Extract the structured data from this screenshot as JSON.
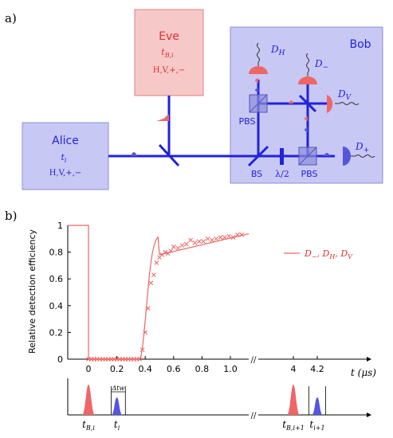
{
  "panel_a": {
    "label": "a)",
    "alice": {
      "title": "Alice",
      "time": "t",
      "time_sub": "i",
      "bases": "H,V,+,−"
    },
    "eve": {
      "title": "Eve",
      "time": "t",
      "time_sub": "B,i",
      "bases": "H,V,+,−"
    },
    "bob": {
      "title": "Bob"
    },
    "components": {
      "bs": "BS",
      "half_wave": "λ/2",
      "pbs1": "PBS",
      "pbs2": "PBS"
    },
    "detectors": {
      "dh": "D",
      "dh_sub": "H",
      "dminus": "D",
      "dminus_sub": "−",
      "dv": "D",
      "dv_sub": "V",
      "dplus": "D",
      "dplus_sub": "+"
    },
    "colors": {
      "blue_fill": "#c8c8f5",
      "blue_edge": "#8c8cdc",
      "beam": "#2222dd",
      "red_fill": "#f7c8c8",
      "red_edge": "#e08080",
      "red": "#e05050",
      "detector_blue": "#5555dd",
      "detector_red": "#ee6666"
    }
  },
  "panel_b": {
    "label": "b)",
    "chart_data": {
      "type": "line",
      "ylabel": "Relative detection efficiency",
      "xlabel": "t (μs)",
      "legend": "D−, DH, DV",
      "legend_placement": "right",
      "ylim": [
        0,
        1
      ],
      "yticks": [
        "0",
        "0.2",
        "0.4",
        "0.6",
        "0.8",
        "1"
      ],
      "xticks": [
        "0",
        "0.2",
        "0.4",
        "0.6",
        "0.8",
        "1.0",
        "4",
        "4.2"
      ],
      "axis_break": "//",
      "grid": false,
      "series": [
        {
          "marker": "x",
          "x": [
            0.0,
            0.02,
            0.04,
            0.06,
            0.08,
            0.1,
            0.12,
            0.14,
            0.16,
            0.18,
            0.2,
            0.22,
            0.24,
            0.26,
            0.28,
            0.3,
            0.32,
            0.34,
            0.36,
            0.38,
            0.4,
            0.42,
            0.44,
            0.46,
            0.48,
            0.5,
            0.52,
            0.54,
            0.56,
            0.58,
            0.6,
            0.63,
            0.66,
            0.69,
            0.72,
            0.75,
            0.78,
            0.81,
            0.84,
            0.87,
            0.9,
            0.93,
            0.96,
            0.99,
            1.02,
            1.05,
            1.08
          ],
          "y": [
            0.0,
            0.0,
            0.0,
            0.0,
            0.0,
            0.0,
            0.0,
            0.0,
            0.0,
            0.0,
            0.0,
            0.0,
            0.0,
            0.0,
            0.0,
            0.0,
            0.0,
            0.0,
            0.0,
            0.07,
            0.2,
            0.38,
            0.57,
            0.63,
            0.72,
            0.76,
            0.78,
            0.8,
            0.79,
            0.81,
            0.84,
            0.83,
            0.85,
            0.86,
            0.89,
            0.87,
            0.88,
            0.88,
            0.9,
            0.89,
            0.9,
            0.91,
            0.91,
            0.92,
            0.91,
            0.93,
            0.93
          ]
        }
      ]
    },
    "timing": {
      "labels": [
        {
          "main": "t",
          "sub": "B,i"
        },
        {
          "main": "t",
          "sub": "i"
        },
        {
          "main": "t",
          "sub": "B,i+1"
        },
        {
          "main": "t",
          "sub": "i+1"
        }
      ],
      "delta": "Δ",
      "delta_sub": "tw",
      "break": "//"
    }
  }
}
